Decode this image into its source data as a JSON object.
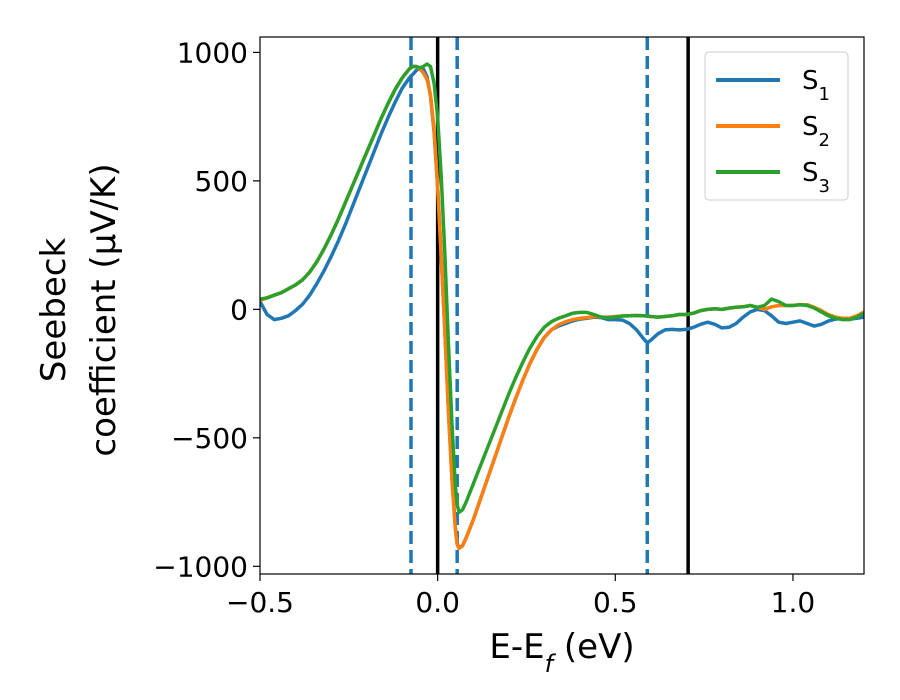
{
  "chart_data": {
    "type": "line",
    "xlabel_main": "E-E",
    "xlabel_sub": "f",
    "xlabel_unit": " (eV)",
    "ylabel_line1": "Seebeck",
    "ylabel_line2": "coefficient  (μV/K)",
    "xlim": [
      -0.5,
      1.2
    ],
    "ylim": [
      -1030,
      1060
    ],
    "xticks": [
      {
        "value": -0.5,
        "label": "−0.5"
      },
      {
        "value": 0.0,
        "label": "0.0"
      },
      {
        "value": 0.5,
        "label": "0.5"
      },
      {
        "value": 1.0,
        "label": "1.0"
      }
    ],
    "yticks": [
      {
        "value": 1000,
        "label": "1000"
      },
      {
        "value": 500,
        "label": "500"
      },
      {
        "value": 0,
        "label": "0"
      },
      {
        "value": -500,
        "label": "−500"
      },
      {
        "value": -1000,
        "label": "−1000"
      }
    ],
    "grid": false,
    "legend_position": "top-right",
    "vlines": [
      {
        "x": -0.075,
        "style": "dashed",
        "color": "#1f77b4"
      },
      {
        "x": 0.055,
        "style": "dashed",
        "color": "#1f77b4"
      },
      {
        "x": 0.59,
        "style": "dashed",
        "color": "#1f77b4"
      },
      {
        "x": 0.0,
        "style": "solid",
        "color": "#000000"
      },
      {
        "x": 0.705,
        "style": "solid",
        "color": "#000000"
      }
    ],
    "series": [
      {
        "name": "S",
        "subscript": "1",
        "color": "#1f77b4",
        "points": [
          [
            -0.5,
            30
          ],
          [
            -0.48,
            -20
          ],
          [
            -0.46,
            -40
          ],
          [
            -0.44,
            -35
          ],
          [
            -0.42,
            -25
          ],
          [
            -0.4,
            -5
          ],
          [
            -0.38,
            20
          ],
          [
            -0.36,
            55
          ],
          [
            -0.34,
            100
          ],
          [
            -0.32,
            150
          ],
          [
            -0.3,
            205
          ],
          [
            -0.28,
            265
          ],
          [
            -0.26,
            330
          ],
          [
            -0.24,
            400
          ],
          [
            -0.22,
            470
          ],
          [
            -0.2,
            540
          ],
          [
            -0.18,
            610
          ],
          [
            -0.16,
            680
          ],
          [
            -0.14,
            745
          ],
          [
            -0.12,
            805
          ],
          [
            -0.1,
            860
          ],
          [
            -0.08,
            900
          ],
          [
            -0.07,
            915
          ],
          [
            -0.06,
            930
          ],
          [
            -0.05,
            940
          ],
          [
            -0.04,
            935
          ],
          [
            -0.03,
            905
          ],
          [
            -0.02,
            830
          ],
          [
            -0.01,
            690
          ],
          [
            0.0,
            480
          ],
          [
            0.01,
            210
          ],
          [
            0.02,
            -80
          ],
          [
            0.03,
            -380
          ],
          [
            0.04,
            -650
          ],
          [
            0.05,
            -850
          ],
          [
            0.055,
            -910
          ],
          [
            0.06,
            -930
          ],
          [
            0.07,
            -920
          ],
          [
            0.08,
            -890
          ],
          [
            0.1,
            -820
          ],
          [
            0.12,
            -740
          ],
          [
            0.14,
            -660
          ],
          [
            0.16,
            -580
          ],
          [
            0.18,
            -500
          ],
          [
            0.2,
            -420
          ],
          [
            0.22,
            -345
          ],
          [
            0.24,
            -275
          ],
          [
            0.26,
            -210
          ],
          [
            0.28,
            -155
          ],
          [
            0.3,
            -110
          ],
          [
            0.32,
            -80
          ],
          [
            0.34,
            -65
          ],
          [
            0.36,
            -55
          ],
          [
            0.38,
            -45
          ],
          [
            0.4,
            -38
          ],
          [
            0.42,
            -35
          ],
          [
            0.44,
            -30
          ],
          [
            0.46,
            -32
          ],
          [
            0.48,
            -40
          ],
          [
            0.5,
            -40
          ],
          [
            0.52,
            -42
          ],
          [
            0.54,
            -55
          ],
          [
            0.56,
            -80
          ],
          [
            0.58,
            -115
          ],
          [
            0.59,
            -130
          ],
          [
            0.6,
            -120
          ],
          [
            0.62,
            -95
          ],
          [
            0.64,
            -80
          ],
          [
            0.66,
            -78
          ],
          [
            0.68,
            -80
          ],
          [
            0.7,
            -78
          ],
          [
            0.72,
            -70
          ],
          [
            0.74,
            -58
          ],
          [
            0.76,
            -50
          ],
          [
            0.78,
            -58
          ],
          [
            0.8,
            -72
          ],
          [
            0.82,
            -70
          ],
          [
            0.84,
            -55
          ],
          [
            0.86,
            -30
          ],
          [
            0.88,
            -10
          ],
          [
            0.9,
            0
          ],
          [
            0.92,
            -5
          ],
          [
            0.94,
            -25
          ],
          [
            0.96,
            -50
          ],
          [
            0.98,
            -55
          ],
          [
            1.0,
            -50
          ],
          [
            1.02,
            -45
          ],
          [
            1.04,
            -55
          ],
          [
            1.06,
            -65
          ],
          [
            1.08,
            -58
          ],
          [
            1.1,
            -45
          ],
          [
            1.12,
            -38
          ],
          [
            1.14,
            -35
          ],
          [
            1.16,
            -38
          ],
          [
            1.18,
            -35
          ],
          [
            1.2,
            -30
          ]
        ]
      },
      {
        "name": "S",
        "subscript": "2",
        "color": "#ff7f0e",
        "points": [
          [
            -0.5,
            35
          ],
          [
            -0.48,
            45
          ],
          [
            -0.46,
            55
          ],
          [
            -0.44,
            65
          ],
          [
            -0.42,
            80
          ],
          [
            -0.4,
            95
          ],
          [
            -0.38,
            115
          ],
          [
            -0.36,
            145
          ],
          [
            -0.34,
            185
          ],
          [
            -0.32,
            235
          ],
          [
            -0.3,
            290
          ],
          [
            -0.28,
            350
          ],
          [
            -0.26,
            415
          ],
          [
            -0.24,
            480
          ],
          [
            -0.22,
            545
          ],
          [
            -0.2,
            610
          ],
          [
            -0.18,
            675
          ],
          [
            -0.16,
            740
          ],
          [
            -0.14,
            800
          ],
          [
            -0.12,
            855
          ],
          [
            -0.1,
            900
          ],
          [
            -0.08,
            935
          ],
          [
            -0.07,
            945
          ],
          [
            -0.06,
            945
          ],
          [
            -0.05,
            935
          ],
          [
            -0.04,
            920
          ],
          [
            -0.03,
            895
          ],
          [
            -0.02,
            835
          ],
          [
            -0.01,
            700
          ],
          [
            0.0,
            480
          ],
          [
            0.01,
            210
          ],
          [
            0.02,
            -80
          ],
          [
            0.03,
            -390
          ],
          [
            0.04,
            -660
          ],
          [
            0.05,
            -860
          ],
          [
            0.055,
            -915
          ],
          [
            0.06,
            -930
          ],
          [
            0.07,
            -920
          ],
          [
            0.08,
            -890
          ],
          [
            0.1,
            -820
          ],
          [
            0.12,
            -740
          ],
          [
            0.14,
            -660
          ],
          [
            0.16,
            -580
          ],
          [
            0.18,
            -500
          ],
          [
            0.2,
            -420
          ],
          [
            0.22,
            -345
          ],
          [
            0.24,
            -275
          ],
          [
            0.26,
            -210
          ],
          [
            0.28,
            -155
          ],
          [
            0.3,
            -110
          ],
          [
            0.32,
            -80
          ],
          [
            0.34,
            -60
          ],
          [
            0.36,
            -48
          ],
          [
            0.38,
            -40
          ],
          [
            0.4,
            -35
          ],
          [
            0.42,
            -32
          ],
          [
            0.44,
            -28
          ],
          [
            0.46,
            -30
          ],
          [
            0.48,
            -30
          ],
          [
            0.5,
            -28
          ],
          [
            0.52,
            -26
          ],
          [
            0.54,
            -25
          ],
          [
            0.56,
            -24
          ],
          [
            0.58,
            -25
          ],
          [
            0.6,
            -28
          ],
          [
            0.62,
            -30
          ],
          [
            0.64,
            -28
          ],
          [
            0.66,
            -25
          ],
          [
            0.68,
            -20
          ],
          [
            0.7,
            -20
          ],
          [
            0.72,
            -15
          ],
          [
            0.74,
            -5
          ],
          [
            0.76,
            0
          ],
          [
            0.78,
            2
          ],
          [
            0.8,
            0
          ],
          [
            0.82,
            5
          ],
          [
            0.84,
            8
          ],
          [
            0.86,
            10
          ],
          [
            0.88,
            15
          ],
          [
            0.9,
            8
          ],
          [
            0.92,
            0
          ],
          [
            0.94,
            10
          ],
          [
            0.96,
            15
          ],
          [
            0.98,
            15
          ],
          [
            1.0,
            15
          ],
          [
            1.02,
            18
          ],
          [
            1.04,
            18
          ],
          [
            1.06,
            8
          ],
          [
            1.08,
            -5
          ],
          [
            1.1,
            -20
          ],
          [
            1.12,
            -30
          ],
          [
            1.14,
            -35
          ],
          [
            1.16,
            -35
          ],
          [
            1.18,
            -25
          ],
          [
            1.2,
            -10
          ]
        ]
      },
      {
        "name": "S",
        "subscript": "3",
        "color": "#2ca02c",
        "points": [
          [
            -0.5,
            40
          ],
          [
            -0.48,
            45
          ],
          [
            -0.46,
            55
          ],
          [
            -0.44,
            65
          ],
          [
            -0.42,
            80
          ],
          [
            -0.4,
            95
          ],
          [
            -0.38,
            115
          ],
          [
            -0.36,
            145
          ],
          [
            -0.34,
            185
          ],
          [
            -0.32,
            235
          ],
          [
            -0.3,
            290
          ],
          [
            -0.28,
            350
          ],
          [
            -0.26,
            415
          ],
          [
            -0.24,
            480
          ],
          [
            -0.22,
            545
          ],
          [
            -0.2,
            610
          ],
          [
            -0.18,
            675
          ],
          [
            -0.16,
            740
          ],
          [
            -0.14,
            800
          ],
          [
            -0.12,
            855
          ],
          [
            -0.1,
            900
          ],
          [
            -0.08,
            935
          ],
          [
            -0.07,
            945
          ],
          [
            -0.06,
            945
          ],
          [
            -0.05,
            940
          ],
          [
            -0.04,
            945
          ],
          [
            -0.03,
            955
          ],
          [
            -0.02,
            945
          ],
          [
            -0.01,
            880
          ],
          [
            0.0,
            750
          ],
          [
            0.01,
            520
          ],
          [
            0.02,
            220
          ],
          [
            0.03,
            -120
          ],
          [
            0.04,
            -440
          ],
          [
            0.05,
            -690
          ],
          [
            0.055,
            -760
          ],
          [
            0.06,
            -790
          ],
          [
            0.07,
            -780
          ],
          [
            0.08,
            -750
          ],
          [
            0.1,
            -680
          ],
          [
            0.12,
            -610
          ],
          [
            0.14,
            -540
          ],
          [
            0.16,
            -470
          ],
          [
            0.18,
            -400
          ],
          [
            0.2,
            -330
          ],
          [
            0.22,
            -265
          ],
          [
            0.24,
            -205
          ],
          [
            0.26,
            -150
          ],
          [
            0.28,
            -105
          ],
          [
            0.3,
            -70
          ],
          [
            0.32,
            -48
          ],
          [
            0.34,
            -35
          ],
          [
            0.36,
            -25
          ],
          [
            0.38,
            -15
          ],
          [
            0.4,
            -12
          ],
          [
            0.42,
            -12
          ],
          [
            0.44,
            -20
          ],
          [
            0.46,
            -30
          ],
          [
            0.48,
            -32
          ],
          [
            0.5,
            -30
          ],
          [
            0.52,
            -26
          ],
          [
            0.54,
            -25
          ],
          [
            0.56,
            -24
          ],
          [
            0.58,
            -25
          ],
          [
            0.6,
            -28
          ],
          [
            0.62,
            -30
          ],
          [
            0.64,
            -28
          ],
          [
            0.66,
            -25
          ],
          [
            0.68,
            -20
          ],
          [
            0.7,
            -20
          ],
          [
            0.72,
            -15
          ],
          [
            0.74,
            -5
          ],
          [
            0.76,
            0
          ],
          [
            0.78,
            2
          ],
          [
            0.8,
            0
          ],
          [
            0.82,
            5
          ],
          [
            0.84,
            8
          ],
          [
            0.86,
            10
          ],
          [
            0.88,
            15
          ],
          [
            0.9,
            8
          ],
          [
            0.92,
            15
          ],
          [
            0.94,
            40
          ],
          [
            0.96,
            30
          ],
          [
            0.98,
            15
          ],
          [
            1.0,
            15
          ],
          [
            1.02,
            18
          ],
          [
            1.04,
            15
          ],
          [
            1.06,
            5
          ],
          [
            1.08,
            -10
          ],
          [
            1.1,
            -25
          ],
          [
            1.12,
            -35
          ],
          [
            1.14,
            -40
          ],
          [
            1.16,
            -40
          ],
          [
            1.18,
            -30
          ],
          [
            1.2,
            -15
          ]
        ]
      }
    ]
  }
}
